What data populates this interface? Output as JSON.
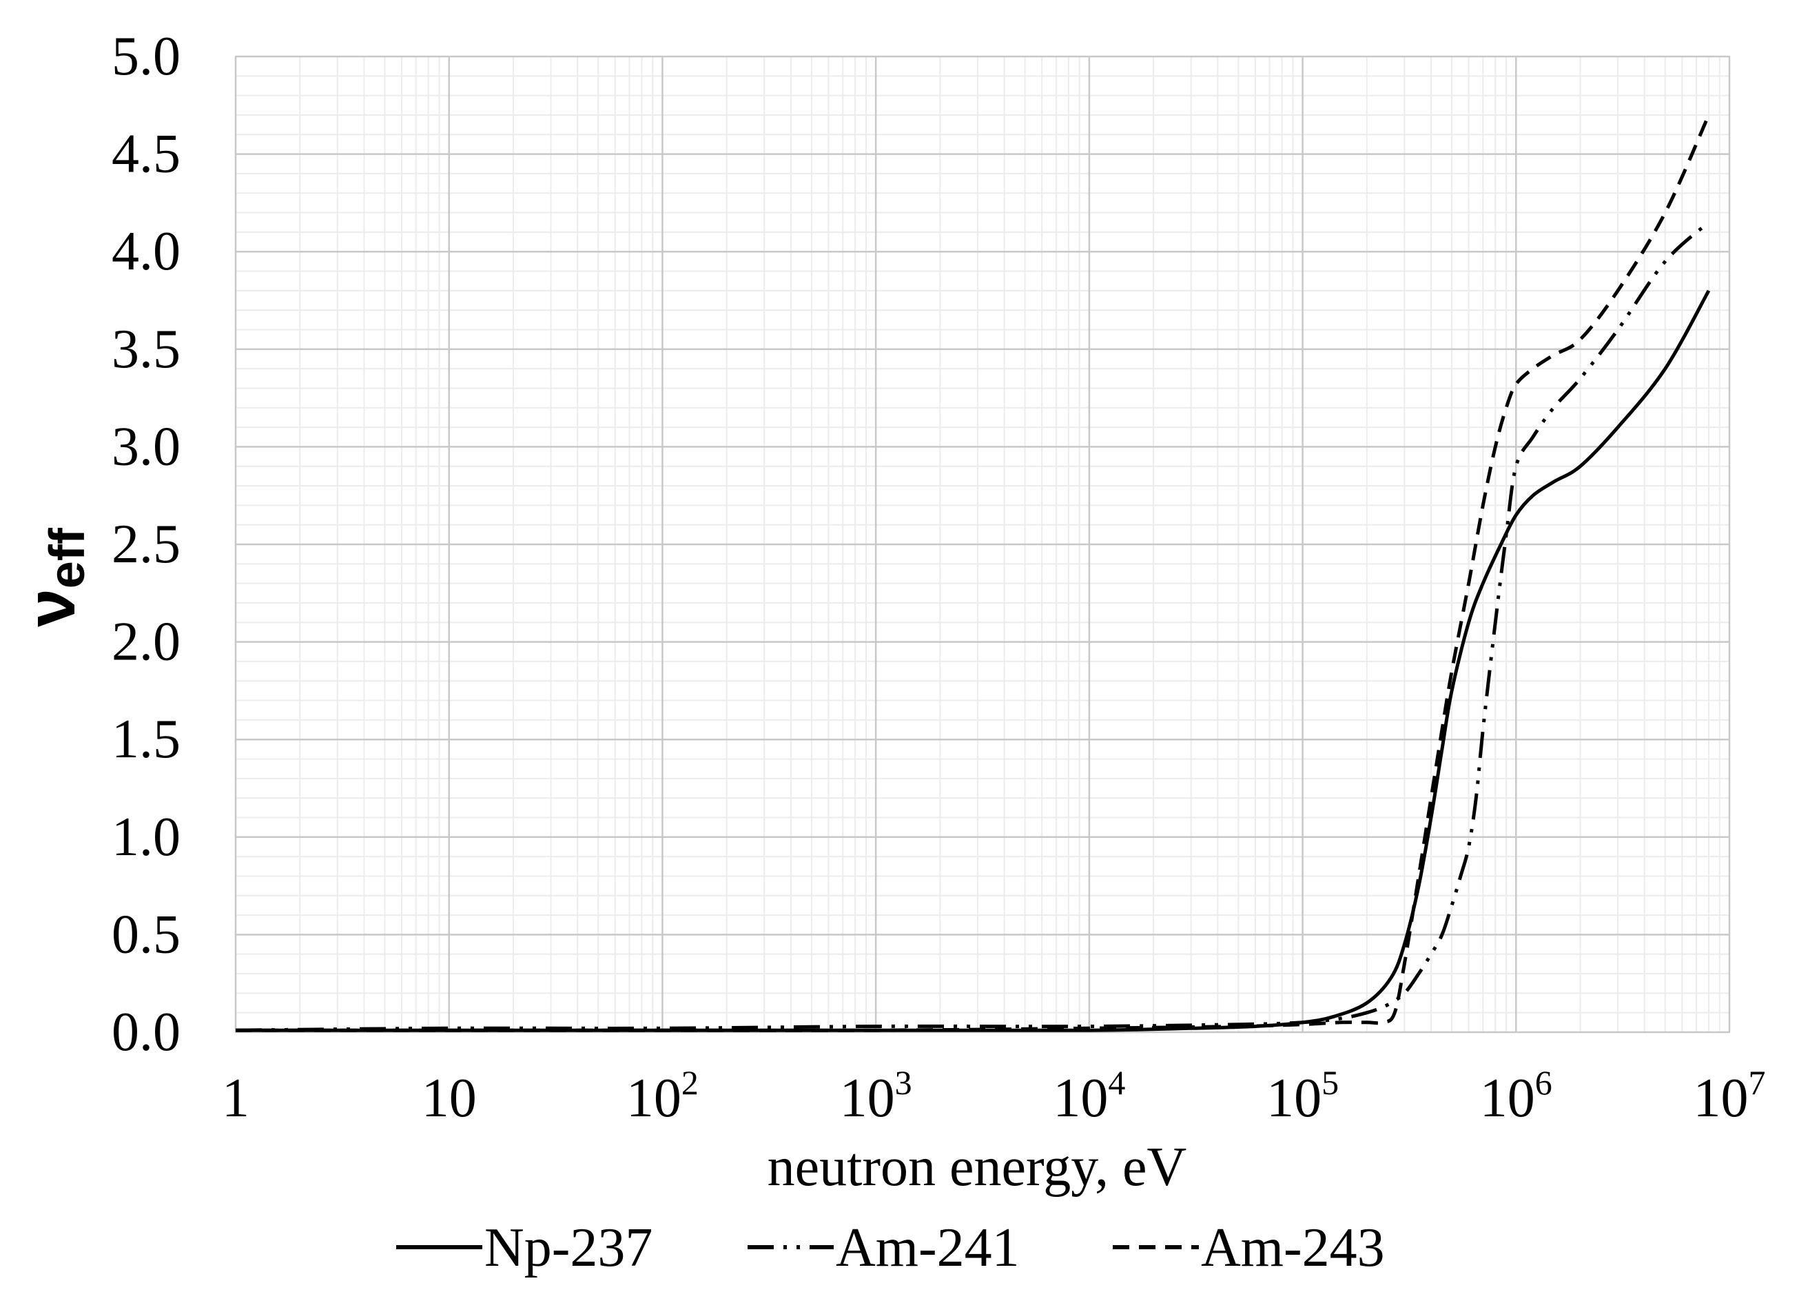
{
  "chart_data": {
    "type": "line",
    "xlabel": "neutron energy, eV",
    "ylabel": {
      "main": "ν",
      "sub": "eff"
    },
    "xscale": "log",
    "xlim": [
      1,
      10000000
    ],
    "ylim": [
      0,
      5
    ],
    "grid": true,
    "legend_position": "bottom",
    "x_ticks": [
      {
        "base": "1",
        "exp": ""
      },
      {
        "base": "10",
        "exp": ""
      },
      {
        "base": "10",
        "exp": "2"
      },
      {
        "base": "10",
        "exp": "3"
      },
      {
        "base": "10",
        "exp": "4"
      },
      {
        "base": "10",
        "exp": "5"
      },
      {
        "base": "10",
        "exp": "6"
      },
      {
        "base": "10",
        "exp": "7"
      }
    ],
    "y_ticks": [
      "0.0",
      "0.5",
      "1.0",
      "1.5",
      "2.0",
      "2.5",
      "3.0",
      "3.5",
      "4.0",
      "4.5",
      "5.0"
    ],
    "series": [
      {
        "name": "Np-237",
        "style": "solid",
        "x": [
          1,
          10,
          100,
          1000,
          10000,
          30000,
          60000,
          100000,
          140000,
          200000,
          260000,
          300000,
          350000,
          400000,
          450000,
          500000,
          600000,
          700000,
          850000,
          1000000,
          1200000,
          1500000,
          2000000,
          3000000,
          5000000,
          8000000
        ],
        "y": [
          0.01,
          0.01,
          0.01,
          0.01,
          0.01,
          0.02,
          0.03,
          0.05,
          0.08,
          0.15,
          0.28,
          0.45,
          0.75,
          1.1,
          1.45,
          1.75,
          2.1,
          2.3,
          2.5,
          2.65,
          2.75,
          2.82,
          2.9,
          3.1,
          3.4,
          3.8
        ]
      },
      {
        "name": "Am-241",
        "style": "dash-dot-dot",
        "x": [
          1,
          10,
          100,
          1000,
          10000,
          50000,
          100000,
          150000,
          200000,
          250000,
          300000,
          350000,
          400000,
          450000,
          500000,
          550000,
          600000,
          650000,
          700000,
          800000,
          900000,
          1000000,
          1200000,
          1500000,
          2000000,
          3000000,
          5000000,
          8000000
        ],
        "y": [
          0.01,
          0.02,
          0.02,
          0.03,
          0.03,
          0.04,
          0.05,
          0.07,
          0.1,
          0.14,
          0.2,
          0.3,
          0.4,
          0.5,
          0.65,
          0.8,
          0.95,
          1.2,
          1.55,
          2.1,
          2.55,
          2.9,
          3.05,
          3.2,
          3.35,
          3.6,
          3.95,
          4.15
        ]
      },
      {
        "name": "Am-243",
        "style": "dashed",
        "x": [
          1,
          10,
          100,
          1000,
          10000,
          50000,
          100000,
          150000,
          200000,
          240000,
          270000,
          300000,
          350000,
          400000,
          450000,
          500000,
          600000,
          700000,
          800000,
          900000,
          1000000,
          1200000,
          1500000,
          2000000,
          3000000,
          5000000,
          8000000
        ],
        "y": [
          0.01,
          0.01,
          0.01,
          0.01,
          0.02,
          0.03,
          0.04,
          0.05,
          0.05,
          0.05,
          0.1,
          0.35,
          0.8,
          1.2,
          1.55,
          1.85,
          2.3,
          2.7,
          3.0,
          3.2,
          3.32,
          3.4,
          3.47,
          3.55,
          3.8,
          4.2,
          4.7
        ]
      }
    ]
  },
  "legend": [
    {
      "label": "Np-237"
    },
    {
      "label": "Am-241"
    },
    {
      "label": "Am-243"
    }
  ]
}
